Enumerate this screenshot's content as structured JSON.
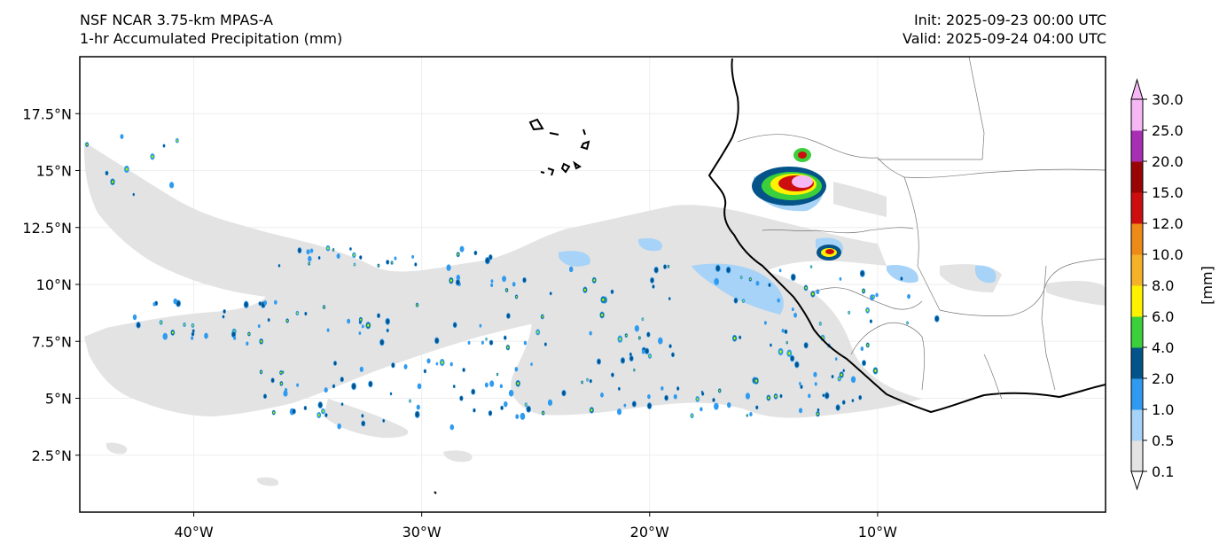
{
  "title": {
    "left_line1": "NSF NCAR 3.75-km MPAS-A",
    "left_line2": "1-hr Accumulated Precipitation (mm)",
    "right_line1": "Init: 2025-09-23 00:00 UTC",
    "right_line2": "Valid: 2025-09-24 04:00 UTC"
  },
  "map": {
    "lon_range": [
      -45,
      0
    ],
    "lat_range": [
      0,
      20
    ],
    "lat_ticks": [
      {
        "value": 2.5,
        "label": "2.5°N"
      },
      {
        "value": 5,
        "label": "5°N"
      },
      {
        "value": 7.5,
        "label": "7.5°N"
      },
      {
        "value": 10,
        "label": "10°N"
      },
      {
        "value": 12.5,
        "label": "12.5°N"
      },
      {
        "value": 15,
        "label": "15°N"
      },
      {
        "value": 17.5,
        "label": "17.5°N"
      }
    ],
    "lon_ticks": [
      {
        "value": -40,
        "label": "40°W"
      },
      {
        "value": -30,
        "label": "30°W"
      },
      {
        "value": -20,
        "label": "20°W"
      },
      {
        "value": -10,
        "label": "10°W"
      }
    ]
  },
  "colorbar": {
    "label": "[mm]",
    "levels": [
      "0.1",
      "0.5",
      "1.0",
      "2.0",
      "4.0",
      "6.0",
      "8.0",
      "10.0",
      "12.0",
      "15.0",
      "20.0",
      "25.0",
      "30.0"
    ],
    "colors": [
      "#e3e3e3",
      "#a6d3f7",
      "#2f9bf0",
      "#045389",
      "#3ccf3c",
      "#fff200",
      "#f5b128",
      "#ee8a17",
      "#cc0e0e",
      "#990505",
      "#a72fb4",
      "#f5b8f5"
    ]
  }
}
